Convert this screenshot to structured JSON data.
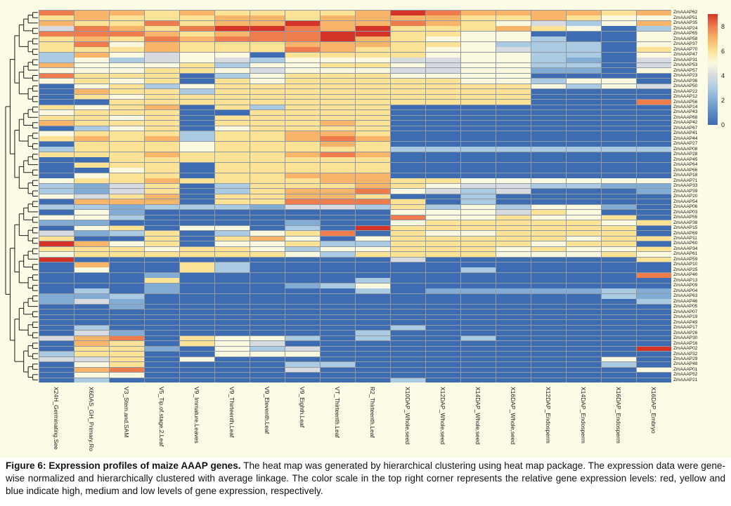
{
  "caption": {
    "bold": "Figure 6: Expression profiles of maize AAAP genes.",
    "rest": " The heat map was generated by hierarchical clustering using heat map package. The expression data were gene-wise normalized and hierarchically clustered with average linkage. The color scale in the top right corner represents the relative gene expression levels: red, yellow and blue indicate high, medium and low levels of gene expression, respectively."
  },
  "legend": {
    "ticks": [
      8,
      6,
      4,
      2,
      0
    ]
  },
  "chart_data": {
    "type": "heatmap",
    "title": "Expression profiles of maize AAAP genes",
    "clustering": "rows hierarchically clustered, dendrogram on left",
    "legend_position": "top-right",
    "value_range": [
      0,
      9
    ],
    "colormap_stops": [
      "#3E6CB2",
      "#5C8AC3",
      "#82ACD4",
      "#ABCBE2",
      "#D7DBE0",
      "#FBF8E0",
      "#FBE295",
      "#F8B468",
      "#EE7C4D",
      "#D43328"
    ],
    "columns": [
      "X24H_Germinating.See",
      "X6DAS_GH_Primary.Ro",
      "V3_Stem.and.SAM",
      "V5_Tip.of.stage.2.Leaf",
      "V9_Immature.Leaves",
      "V9_Thirteenth.Leaf",
      "V9_Eleventh.Leaf",
      "V9_Eighth.Leaf",
      "VT_Thirteenth.Leaf",
      "R2_Thirteenth.Leaf",
      "X10DAP_Whole.seed",
      "X12DAP_Whole.seed",
      "X14DAP_Whole.seed",
      "X16DAP_Whole.seed",
      "X12DAP_Endosperm",
      "X14DAP_Endosperm",
      "X16DAP_Endosperm",
      "X16DAP_Embryo"
    ],
    "rows": [
      "ZmAAAP62",
      "ZmAAAP51",
      "ZmAAAP35",
      "ZmAAAP24",
      "ZmAAAP65",
      "ZmAAAP58",
      "ZmAAAP37",
      "ZmAAAP70",
      "ZmAAAP47",
      "ZmAAAP31",
      "ZmAAAP53",
      "ZmAAAP57",
      "ZmAAAP23",
      "ZmAAAP36",
      "ZmAAAP50",
      "ZmAAAP22",
      "ZmAAAP12",
      "ZmAAAP56",
      "ZmAAAP14",
      "ZmAAAP43",
      "ZmAAAP68",
      "ZmAAAP42",
      "ZmAAAP67",
      "ZmAAAP41",
      "ZmAAAP44",
      "ZmAAAP27",
      "ZmAAAP08",
      "ZmAAAP28",
      "ZmAAAP45",
      "ZmAAAP64",
      "ZmAAAP66",
      "ZmAAAP18",
      "ZmAAAP71",
      "ZmAAAP33",
      "ZmAAAP39",
      "ZmAAAP20",
      "ZmAAAP54",
      "ZmAAAP06",
      "ZmAAAP03",
      "ZmAAAP55",
      "ZmAAAP38",
      "ZmAAAP15",
      "ZmAAAP69",
      "ZmAAAP11",
      "ZmAAAP60",
      "ZmAAAP34",
      "ZmAAAP61",
      "ZmAAAP59",
      "ZmAAAP10",
      "ZmAAAP25",
      "ZmAAAP40",
      "ZmAAAP13",
      "ZmAAAP09",
      "ZmAAAP04",
      "ZmAAAP63",
      "ZmAAAP46",
      "ZmAAAP05",
      "ZmAAAP07",
      "ZmAAAP19",
      "ZmAAAP49",
      "ZmAAAP17",
      "ZmAAAP26",
      "ZmAAAP30",
      "ZmAAAP16",
      "ZmAAAP02",
      "ZmAAAP32",
      "ZmAAAP29",
      "ZmAAAP48",
      "ZmAAAP01",
      "ZmAAAP52",
      "ZmAAAP21"
    ],
    "values": [
      [
        8,
        7,
        7,
        6,
        7,
        6,
        6,
        6,
        6,
        7,
        9,
        8,
        7,
        7,
        7,
        7,
        6,
        7
      ],
      [
        6,
        7,
        6,
        6,
        6,
        7,
        7,
        6,
        7,
        7,
        7,
        7,
        6,
        6,
        7,
        6,
        5,
        5
      ],
      [
        7,
        6,
        6,
        8,
        6,
        7,
        7,
        9,
        7,
        7,
        8,
        7,
        6,
        5,
        4,
        3,
        5,
        7
      ],
      [
        4,
        8,
        7,
        6,
        8,
        9,
        9,
        8,
        7,
        9,
        6,
        6,
        6,
        7,
        6,
        5,
        0,
        3
      ],
      [
        8,
        8,
        8,
        7,
        6,
        7,
        8,
        8,
        9,
        9,
        6,
        6,
        5,
        5,
        0,
        0,
        0,
        5
      ],
      [
        6,
        7,
        6,
        8,
        7,
        8,
        8,
        8,
        9,
        7,
        6,
        5,
        5,
        5,
        3,
        0,
        0,
        5
      ],
      [
        6,
        8,
        5,
        7,
        6,
        6,
        6,
        7,
        7,
        7,
        6,
        6,
        5,
        3,
        3,
        3,
        0,
        5
      ],
      [
        6,
        6,
        6,
        7,
        6,
        6,
        6,
        8,
        7,
        6,
        6,
        5,
        5,
        4,
        3,
        3,
        0,
        6
      ],
      [
        3,
        7,
        5,
        4,
        5,
        5,
        0,
        6,
        6,
        6,
        6,
        5,
        5,
        5,
        3,
        3,
        0,
        5
      ],
      [
        3,
        5,
        3,
        4,
        5,
        4,
        3,
        5,
        5,
        5,
        4,
        4,
        5,
        5,
        3,
        2,
        0,
        4
      ],
      [
        7,
        5,
        5,
        5,
        6,
        3,
        5,
        5,
        6,
        6,
        5,
        4,
        5,
        5,
        3,
        3,
        0,
        4
      ],
      [
        5,
        5,
        5,
        6,
        6,
        5,
        4,
        5,
        5,
        5,
        4,
        4,
        5,
        5,
        2,
        2,
        0,
        5
      ],
      [
        8,
        6,
        6,
        6,
        0,
        3,
        5,
        6,
        6,
        6,
        5,
        5,
        5,
        5,
        0,
        0,
        0,
        0
      ],
      [
        5,
        6,
        5,
        6,
        0,
        6,
        5,
        6,
        6,
        6,
        6,
        6,
        5,
        5,
        3,
        5,
        5,
        0
      ],
      [
        0,
        5,
        6,
        3,
        5,
        6,
        6,
        6,
        6,
        6,
        6,
        6,
        6,
        6,
        5,
        3,
        5,
        4
      ],
      [
        0,
        7,
        6,
        6,
        3,
        6,
        6,
        6,
        6,
        6,
        6,
        6,
        6,
        6,
        0,
        0,
        0,
        0
      ],
      [
        0,
        6,
        5,
        6,
        6,
        6,
        6,
        6,
        6,
        6,
        6,
        6,
        6,
        6,
        0,
        0,
        0,
        0
      ],
      [
        0,
        0,
        6,
        6,
        6,
        6,
        6,
        6,
        6,
        6,
        6,
        6,
        6,
        6,
        0,
        0,
        0,
        8
      ],
      [
        6,
        5,
        6,
        7,
        0,
        6,
        3,
        6,
        6,
        6,
        0,
        0,
        0,
        0,
        0,
        0,
        0,
        0
      ],
      [
        5,
        6,
        6,
        6,
        0,
        0,
        6,
        6,
        6,
        6,
        0,
        0,
        0,
        0,
        0,
        0,
        0,
        0
      ],
      [
        6,
        6,
        5,
        6,
        0,
        6,
        6,
        6,
        6,
        6,
        0,
        0,
        0,
        0,
        0,
        0,
        0,
        0
      ],
      [
        7,
        6,
        6,
        6,
        0,
        6,
        6,
        6,
        7,
        6,
        0,
        0,
        0,
        0,
        0,
        0,
        0,
        0
      ],
      [
        0,
        3,
        5,
        6,
        0,
        5,
        6,
        6,
        6,
        6,
        0,
        0,
        0,
        0,
        0,
        0,
        0,
        0
      ],
      [
        5,
        6,
        6,
        6,
        3,
        6,
        6,
        7,
        7,
        6,
        0,
        0,
        0,
        0,
        0,
        0,
        0,
        0
      ],
      [
        6,
        7,
        6,
        7,
        3,
        6,
        6,
        7,
        8,
        7,
        0,
        0,
        0,
        0,
        0,
        0,
        0,
        0
      ],
      [
        0,
        6,
        6,
        6,
        5,
        6,
        6,
        6,
        7,
        6,
        0,
        0,
        0,
        0,
        0,
        0,
        0,
        0
      ],
      [
        3,
        6,
        6,
        6,
        5,
        6,
        6,
        6,
        6,
        6,
        3,
        3,
        3,
        3,
        3,
        3,
        3,
        3
      ],
      [
        6,
        6,
        6,
        7,
        6,
        6,
        6,
        7,
        8,
        7,
        0,
        0,
        0,
        0,
        0,
        0,
        0,
        0
      ],
      [
        0,
        0,
        6,
        6,
        6,
        6,
        6,
        6,
        6,
        6,
        0,
        0,
        0,
        0,
        0,
        0,
        0,
        0
      ],
      [
        0,
        6,
        6,
        6,
        0,
        6,
        6,
        6,
        6,
        6,
        0,
        0,
        0,
        0,
        0,
        0,
        0,
        0
      ],
      [
        0,
        0,
        5,
        6,
        0,
        6,
        6,
        6,
        6,
        6,
        0,
        0,
        0,
        0,
        0,
        0,
        0,
        0
      ],
      [
        0,
        5,
        6,
        6,
        0,
        6,
        6,
        7,
        7,
        7,
        0,
        0,
        0,
        0,
        0,
        0,
        0,
        0
      ],
      [
        5,
        6,
        6,
        7,
        6,
        6,
        6,
        6,
        7,
        7,
        6,
        6,
        5,
        5,
        5,
        5,
        5,
        5
      ],
      [
        3,
        2,
        4,
        6,
        0,
        3,
        6,
        6,
        6,
        7,
        6,
        5,
        4,
        4,
        3,
        3,
        2,
        2
      ],
      [
        3,
        2,
        4,
        6,
        0,
        3,
        6,
        7,
        7,
        8,
        5,
        4,
        3,
        4,
        0,
        0,
        0,
        2
      ],
      [
        5,
        4,
        6,
        7,
        0,
        6,
        6,
        7,
        7,
        6,
        0,
        0,
        3,
        0,
        0,
        0,
        0,
        0
      ],
      [
        0,
        7,
        7,
        7,
        0,
        6,
        6,
        8,
        8,
        8,
        6,
        0,
        3,
        0,
        0,
        0,
        0,
        0
      ],
      [
        3,
        3,
        2,
        3,
        3,
        3,
        2,
        4,
        4,
        3,
        6,
        3,
        5,
        3,
        5,
        5,
        2,
        0
      ],
      [
        0,
        5,
        2,
        0,
        0,
        0,
        0,
        0,
        0,
        0,
        5,
        5,
        5,
        4,
        6,
        5,
        0,
        0
      ],
      [
        5,
        5,
        3,
        0,
        0,
        0,
        0,
        0,
        0,
        0,
        8,
        5,
        5,
        6,
        5,
        5,
        6,
        0
      ],
      [
        2,
        2,
        0,
        0,
        0,
        0,
        0,
        2,
        0,
        0,
        5,
        6,
        6,
        6,
        6,
        6,
        5,
        6
      ],
      [
        0,
        5,
        6,
        0,
        5,
        5,
        0,
        3,
        0,
        9,
        6,
        6,
        6,
        6,
        6,
        6,
        6,
        0
      ],
      [
        4,
        2,
        3,
        6,
        0,
        3,
        5,
        6,
        8,
        0,
        6,
        5,
        5,
        6,
        6,
        6,
        6,
        0
      ],
      [
        6,
        0,
        0,
        6,
        0,
        6,
        7,
        5,
        0,
        5,
        6,
        6,
        6,
        6,
        6,
        5,
        6,
        6
      ],
      [
        9,
        7,
        5,
        6,
        0,
        5,
        5,
        6,
        3,
        3,
        6,
        6,
        6,
        6,
        5,
        6,
        6,
        0
      ],
      [
        6,
        6,
        6,
        5,
        6,
        6,
        5,
        3,
        5,
        5,
        6,
        6,
        6,
        5,
        6,
        5,
        5,
        6
      ],
      [
        5,
        6,
        6,
        6,
        6,
        6,
        6,
        5,
        3,
        6,
        6,
        6,
        6,
        5,
        5,
        5,
        6,
        5
      ],
      [
        9,
        0,
        0,
        0,
        0,
        0,
        0,
        0,
        0,
        0,
        4,
        0,
        0,
        0,
        0,
        0,
        0,
        6
      ],
      [
        0,
        7,
        0,
        0,
        6,
        3,
        0,
        0,
        0,
        0,
        0,
        0,
        0,
        0,
        0,
        0,
        0,
        0
      ],
      [
        0,
        5,
        0,
        0,
        6,
        3,
        0,
        0,
        0,
        0,
        0,
        0,
        3,
        0,
        0,
        0,
        0,
        0
      ],
      [
        0,
        0,
        0,
        2,
        0,
        0,
        0,
        0,
        0,
        0,
        0,
        0,
        0,
        0,
        0,
        0,
        0,
        8
      ],
      [
        0,
        0,
        0,
        6,
        0,
        0,
        0,
        0,
        0,
        3,
        0,
        0,
        0,
        0,
        0,
        0,
        0,
        0
      ],
      [
        0,
        0,
        0,
        2,
        0,
        0,
        0,
        2,
        3,
        5,
        0,
        0,
        0,
        0,
        0,
        0,
        0,
        0
      ],
      [
        0,
        3,
        0,
        2,
        0,
        0,
        0,
        0,
        0,
        3,
        0,
        2,
        2,
        2,
        2,
        2,
        3,
        2
      ],
      [
        2,
        2,
        3,
        0,
        0,
        0,
        0,
        0,
        0,
        0,
        0,
        0,
        0,
        0,
        0,
        0,
        3,
        2
      ],
      [
        2,
        4,
        2,
        0,
        0,
        0,
        0,
        0,
        0,
        0,
        0,
        0,
        0,
        0,
        0,
        0,
        0,
        3
      ],
      [
        0,
        0,
        2,
        0,
        0,
        0,
        0,
        0,
        0,
        0,
        0,
        0,
        0,
        0,
        0,
        0,
        0,
        0
      ],
      [
        0,
        0,
        0,
        0,
        0,
        0,
        0,
        0,
        0,
        0,
        0,
        0,
        0,
        0,
        0,
        0,
        0,
        0
      ],
      [
        0,
        0,
        0,
        0,
        0,
        0,
        0,
        0,
        0,
        0,
        0,
        0,
        0,
        0,
        0,
        0,
        0,
        0
      ],
      [
        0,
        0,
        0,
        0,
        0,
        0,
        0,
        0,
        0,
        0,
        0,
        0,
        0,
        0,
        0,
        0,
        0,
        0
      ],
      [
        0,
        3,
        0,
        0,
        0,
        0,
        0,
        0,
        0,
        0,
        3,
        0,
        0,
        0,
        0,
        0,
        0,
        0
      ],
      [
        0,
        4,
        2,
        0,
        0,
        0,
        0,
        0,
        0,
        3,
        0,
        0,
        0,
        0,
        0,
        0,
        0,
        0
      ],
      [
        4,
        7,
        8,
        0,
        6,
        5,
        5,
        3,
        0,
        3,
        0,
        0,
        3,
        0,
        0,
        0,
        0,
        0
      ],
      [
        0,
        7,
        6,
        0,
        6,
        5,
        4,
        0,
        0,
        0,
        0,
        0,
        0,
        0,
        0,
        0,
        0,
        0
      ],
      [
        0,
        6,
        6,
        2,
        0,
        5,
        3,
        4,
        0,
        0,
        0,
        0,
        0,
        0,
        0,
        0,
        0,
        9
      ],
      [
        3,
        6,
        6,
        0,
        0,
        5,
        5,
        5,
        0,
        0,
        0,
        0,
        0,
        0,
        0,
        0,
        0,
        0
      ],
      [
        4,
        4,
        6,
        0,
        5,
        0,
        0,
        0,
        0,
        0,
        0,
        0,
        0,
        0,
        0,
        0,
        5,
        0
      ],
      [
        0,
        5,
        6,
        0,
        0,
        0,
        0,
        3,
        3,
        0,
        0,
        0,
        0,
        0,
        0,
        0,
        3,
        0
      ],
      [
        0,
        7,
        8,
        0,
        0,
        0,
        0,
        4,
        0,
        0,
        0,
        0,
        0,
        0,
        0,
        0,
        0,
        5
      ],
      [
        0,
        5,
        5,
        0,
        0,
        0,
        0,
        0,
        0,
        0,
        0,
        0,
        0,
        0,
        0,
        0,
        0,
        0
      ],
      [
        0,
        3,
        0,
        0,
        0,
        0,
        0,
        0,
        0,
        0,
        3,
        0,
        0,
        0,
        0,
        0,
        0,
        0
      ]
    ]
  }
}
